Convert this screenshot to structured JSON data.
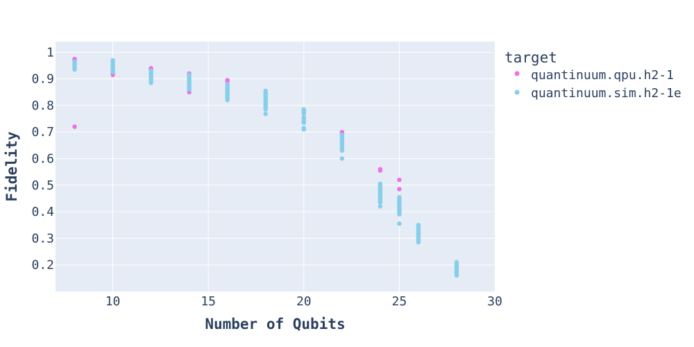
{
  "chart_data": {
    "type": "scatter",
    "xlabel": "Number of Qubits",
    "ylabel": "Fidelity",
    "xlim": [
      7,
      30
    ],
    "ylim": [
      0.1,
      1.04
    ],
    "x_ticks": [
      "10",
      "15",
      "20",
      "25",
      "30"
    ],
    "y_ticks": [
      "0.2",
      "0.3",
      "0.4",
      "0.5",
      "0.6",
      "0.7",
      "0.8",
      "0.9",
      "1"
    ],
    "grid": true,
    "legend": {
      "title": "target",
      "placement": "right"
    },
    "series": [
      {
        "name": "quantinuum.qpu.h2-1",
        "color": "#ef6ee8",
        "points": [
          [
            8,
            0.975
          ],
          [
            8,
            0.97
          ],
          [
            8,
            0.72
          ],
          [
            10,
            0.915
          ],
          [
            10,
            0.92
          ],
          [
            12,
            0.94
          ],
          [
            12,
            0.935
          ],
          [
            14,
            0.85
          ],
          [
            14,
            0.92
          ],
          [
            16,
            0.895
          ],
          [
            16,
            0.89
          ],
          [
            18,
            0.84
          ],
          [
            20,
            0.77
          ],
          [
            22,
            0.7
          ],
          [
            22,
            0.695
          ],
          [
            24,
            0.56
          ],
          [
            24,
            0.555
          ],
          [
            25,
            0.52
          ],
          [
            25,
            0.485
          ]
        ]
      },
      {
        "name": "quantinuum.sim.h2-1e",
        "color": "#87ceeb",
        "points": [
          [
            8,
            0.935
          ],
          [
            8,
            0.94
          ],
          [
            8,
            0.945
          ],
          [
            8,
            0.95
          ],
          [
            8,
            0.955
          ],
          [
            8,
            0.96
          ],
          [
            8,
            0.965
          ],
          [
            10,
            0.925
          ],
          [
            10,
            0.93
          ],
          [
            10,
            0.935
          ],
          [
            10,
            0.94
          ],
          [
            10,
            0.945
          ],
          [
            10,
            0.95
          ],
          [
            10,
            0.955
          ],
          [
            10,
            0.96
          ],
          [
            10,
            0.965
          ],
          [
            10,
            0.97
          ],
          [
            12,
            0.885
          ],
          [
            12,
            0.89
          ],
          [
            12,
            0.895
          ],
          [
            12,
            0.9
          ],
          [
            12,
            0.905
          ],
          [
            12,
            0.91
          ],
          [
            12,
            0.915
          ],
          [
            12,
            0.92
          ],
          [
            12,
            0.925
          ],
          [
            12,
            0.93
          ],
          [
            14,
            0.86
          ],
          [
            14,
            0.865
          ],
          [
            14,
            0.87
          ],
          [
            14,
            0.875
          ],
          [
            14,
            0.88
          ],
          [
            14,
            0.885
          ],
          [
            14,
            0.89
          ],
          [
            14,
            0.895
          ],
          [
            14,
            0.9
          ],
          [
            14,
            0.905
          ],
          [
            14,
            0.91
          ],
          [
            14,
            0.915
          ],
          [
            16,
            0.82
          ],
          [
            16,
            0.825
          ],
          [
            16,
            0.83
          ],
          [
            16,
            0.835
          ],
          [
            16,
            0.84
          ],
          [
            16,
            0.845
          ],
          [
            16,
            0.85
          ],
          [
            16,
            0.855
          ],
          [
            16,
            0.86
          ],
          [
            16,
            0.865
          ],
          [
            16,
            0.87
          ],
          [
            16,
            0.875
          ],
          [
            16,
            0.88
          ],
          [
            18,
            0.768
          ],
          [
            18,
            0.785
          ],
          [
            18,
            0.79
          ],
          [
            18,
            0.795
          ],
          [
            18,
            0.8
          ],
          [
            18,
            0.805
          ],
          [
            18,
            0.81
          ],
          [
            18,
            0.815
          ],
          [
            18,
            0.82
          ],
          [
            18,
            0.825
          ],
          [
            18,
            0.83
          ],
          [
            18,
            0.835
          ],
          [
            18,
            0.84
          ],
          [
            18,
            0.845
          ],
          [
            18,
            0.85
          ],
          [
            18,
            0.855
          ],
          [
            20,
            0.71
          ],
          [
            20,
            0.715
          ],
          [
            20,
            0.735
          ],
          [
            20,
            0.74
          ],
          [
            20,
            0.745
          ],
          [
            20,
            0.75
          ],
          [
            20,
            0.755
          ],
          [
            20,
            0.77
          ],
          [
            20,
            0.775
          ],
          [
            20,
            0.78
          ],
          [
            20,
            0.785
          ],
          [
            22,
            0.6
          ],
          [
            22,
            0.63
          ],
          [
            22,
            0.635
          ],
          [
            22,
            0.64
          ],
          [
            22,
            0.645
          ],
          [
            22,
            0.65
          ],
          [
            22,
            0.655
          ],
          [
            22,
            0.66
          ],
          [
            22,
            0.665
          ],
          [
            22,
            0.67
          ],
          [
            22,
            0.675
          ],
          [
            22,
            0.68
          ],
          [
            22,
            0.685
          ],
          [
            22,
            0.69
          ],
          [
            24,
            0.42
          ],
          [
            24,
            0.435
          ],
          [
            24,
            0.44
          ],
          [
            24,
            0.445
          ],
          [
            24,
            0.45
          ],
          [
            24,
            0.455
          ],
          [
            24,
            0.46
          ],
          [
            24,
            0.465
          ],
          [
            24,
            0.47
          ],
          [
            24,
            0.475
          ],
          [
            24,
            0.48
          ],
          [
            24,
            0.485
          ],
          [
            24,
            0.49
          ],
          [
            24,
            0.495
          ],
          [
            24,
            0.5
          ],
          [
            24,
            0.505
          ],
          [
            25,
            0.355
          ],
          [
            25,
            0.39
          ],
          [
            25,
            0.395
          ],
          [
            25,
            0.4
          ],
          [
            25,
            0.405
          ],
          [
            25,
            0.41
          ],
          [
            25,
            0.415
          ],
          [
            25,
            0.42
          ],
          [
            25,
            0.425
          ],
          [
            25,
            0.43
          ],
          [
            25,
            0.435
          ],
          [
            25,
            0.44
          ],
          [
            25,
            0.445
          ],
          [
            25,
            0.45
          ],
          [
            25,
            0.455
          ],
          [
            26,
            0.285
          ],
          [
            26,
            0.29
          ],
          [
            26,
            0.295
          ],
          [
            26,
            0.3
          ],
          [
            26,
            0.305
          ],
          [
            26,
            0.31
          ],
          [
            26,
            0.315
          ],
          [
            26,
            0.32
          ],
          [
            26,
            0.325
          ],
          [
            26,
            0.33
          ],
          [
            26,
            0.335
          ],
          [
            26,
            0.34
          ],
          [
            26,
            0.345
          ],
          [
            26,
            0.35
          ],
          [
            28,
            0.16
          ],
          [
            28,
            0.165
          ],
          [
            28,
            0.17
          ],
          [
            28,
            0.175
          ],
          [
            28,
            0.18
          ],
          [
            28,
            0.185
          ],
          [
            28,
            0.19
          ],
          [
            28,
            0.195
          ],
          [
            28,
            0.2
          ],
          [
            28,
            0.205
          ],
          [
            28,
            0.21
          ]
        ]
      }
    ]
  }
}
